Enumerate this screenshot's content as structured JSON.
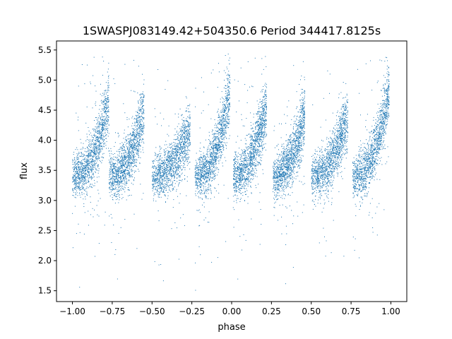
{
  "chart_data": {
    "type": "scatter",
    "title": "1SWASPJ083149.42+504350.6 Period 344417.8125s",
    "xlabel": "phase",
    "ylabel": "flux",
    "xlim": [
      -1.1,
      1.1
    ],
    "ylim": [
      1.32,
      5.65
    ],
    "xticks": [
      -1.0,
      -0.75,
      -0.5,
      -0.25,
      0.0,
      0.25,
      0.5,
      0.75,
      1.0
    ],
    "xtick_labels": [
      "−1.00",
      "−0.75",
      "−0.50",
      "−0.25",
      "0.00",
      "0.25",
      "0.50",
      "0.75",
      "1.00"
    ],
    "yticks": [
      1.5,
      2.0,
      2.5,
      3.0,
      3.5,
      4.0,
      4.5,
      5.0,
      5.5
    ],
    "ytick_labels": [
      "1.5",
      "2.0",
      "2.5",
      "3.0",
      "3.5",
      "4.0",
      "4.5",
      "5.0",
      "5.5"
    ],
    "grid": false,
    "legend": "none",
    "point_color": "#1f77b4",
    "folded_cycles": [
      {
        "phase_start": -1.0,
        "phase_end": -0.77,
        "flux_start": 3.4,
        "flux_end": 4.7
      },
      {
        "phase_start": -0.77,
        "phase_end": -0.55,
        "flux_start": 3.4,
        "flux_end": 4.5
      },
      {
        "phase_start": -0.5,
        "phase_end": -0.26,
        "flux_start": 3.4,
        "flux_end": 4.2
      },
      {
        "phase_start": -0.23,
        "phase_end": -0.01,
        "flux_start": 3.4,
        "flux_end": 4.8
      },
      {
        "phase_start": 0.01,
        "phase_end": 0.22,
        "flux_start": 3.4,
        "flux_end": 4.6
      },
      {
        "phase_start": 0.26,
        "phase_end": 0.46,
        "flux_start": 3.4,
        "flux_end": 4.4
      },
      {
        "phase_start": 0.5,
        "phase_end": 0.73,
        "flux_start": 3.4,
        "flux_end": 4.4
      },
      {
        "phase_start": 0.76,
        "phase_end": 0.99,
        "flux_start": 3.4,
        "flux_end": 4.8
      }
    ]
  }
}
